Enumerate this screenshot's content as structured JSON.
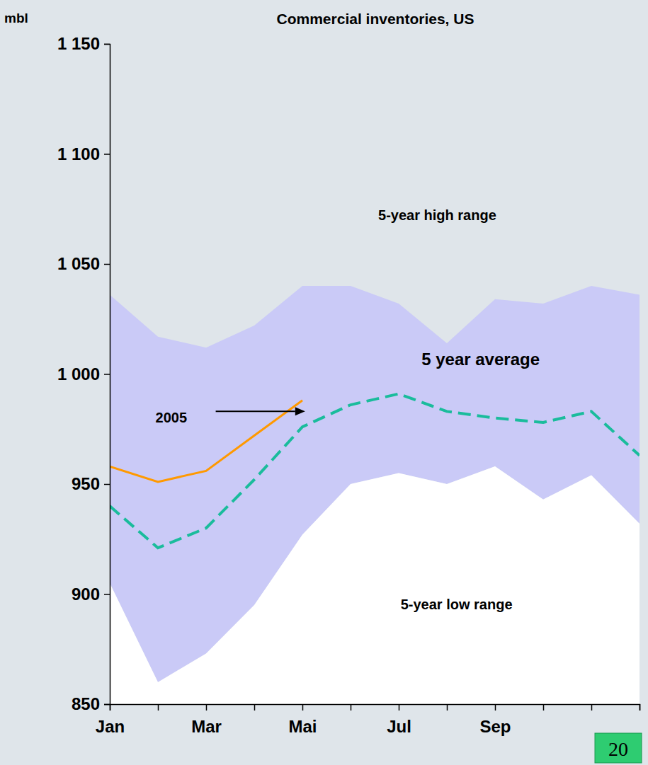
{
  "chart_data": {
    "type": "line",
    "title": "Commercial inventories, US",
    "y_label": "mbl",
    "categories": [
      "Jan",
      null,
      "Mar",
      null,
      "Mai",
      null,
      "Jul",
      null,
      "Sep",
      null,
      null,
      null
    ],
    "ylim": [
      850,
      1150
    ],
    "yticks": [
      850,
      900,
      950,
      {
        "value": 1000,
        "label": "1 000"
      },
      {
        "value": 1050,
        "label": "1 050"
      },
      {
        "value": 1100,
        "label": "1 100"
      },
      {
        "value": 1150,
        "label": "1 150"
      }
    ],
    "grid": false,
    "series": [
      {
        "name": "5-year high range",
        "type": "area",
        "color": "#c8c8f8",
        "values": [
          1036,
          1017,
          1012,
          1022,
          1040,
          1040,
          1032,
          1014,
          1034,
          1032,
          1040,
          1036
        ]
      },
      {
        "name": "5-year low range",
        "type": "area",
        "color": "#ffffff",
        "values": [
          905,
          860,
          873,
          895,
          927,
          950,
          955,
          950,
          958,
          943,
          954,
          932
        ]
      },
      {
        "name": "5 year average",
        "type": "line",
        "line_style": "dashed",
        "color": "#1abc9c",
        "values": [
          940,
          921,
          930,
          952,
          976,
          986,
          991,
          983,
          980,
          978,
          983,
          963
        ]
      },
      {
        "name": "2005",
        "type": "line",
        "line_style": "solid",
        "color": "#ff9900",
        "values": [
          958,
          951,
          956,
          972,
          988,
          null,
          null,
          null,
          null,
          null,
          null,
          null
        ]
      }
    ],
    "annotations": [
      {
        "text": "20"
      }
    ]
  }
}
